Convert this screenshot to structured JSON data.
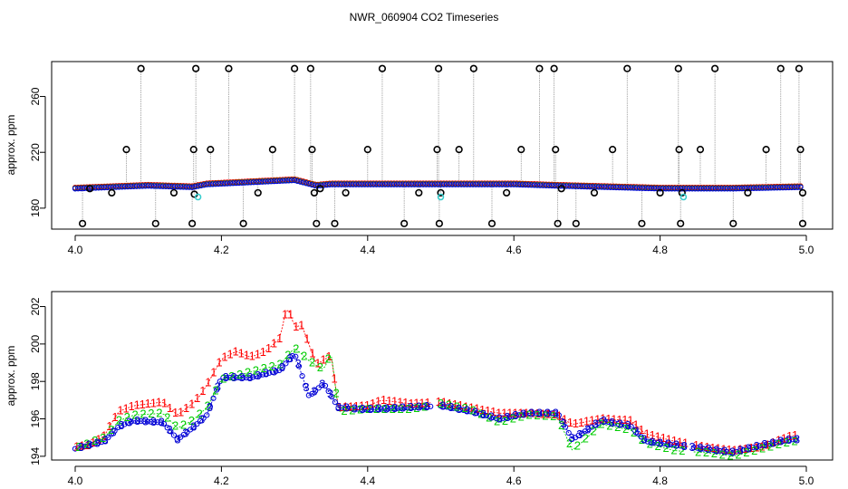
{
  "chart_data": [
    {
      "type": "scatter",
      "title": "NWR_060904  CO2 Timeseries",
      "xlabel": "",
      "ylabel": "approx. ppm",
      "xlim": [
        4.0,
        5.0
      ],
      "ylim": [
        165,
        285
      ],
      "x_ticks": [
        4.0,
        4.2,
        4.4,
        4.6,
        4.8,
        5.0
      ],
      "x_tick_labels": [
        "4.0",
        "4.2",
        "4.4",
        "4.6",
        "4.8",
        "5.0"
      ],
      "y_ticks": [
        180,
        220,
        260
      ],
      "y_tick_labels": [
        "180",
        "220",
        "260"
      ],
      "baseline": [
        [
          4.0,
          194
        ],
        [
          4.1,
          196
        ],
        [
          4.16,
          195
        ],
        [
          4.18,
          197
        ],
        [
          4.3,
          200
        ],
        [
          4.33,
          196
        ],
        [
          4.35,
          197
        ],
        [
          4.6,
          197
        ],
        [
          4.66,
          196
        ],
        [
          4.8,
          194
        ],
        [
          4.9,
          194
        ],
        [
          4.99,
          195
        ]
      ],
      "open_circle_outliers": [
        [
          4.01,
          169
        ],
        [
          4.02,
          194
        ],
        [
          4.05,
          191
        ],
        [
          4.07,
          222
        ],
        [
          4.09,
          280
        ],
        [
          4.11,
          169
        ],
        [
          4.135,
          191
        ],
        [
          4.16,
          169
        ],
        [
          4.162,
          222
        ],
        [
          4.163,
          190
        ],
        [
          4.165,
          280
        ],
        [
          4.185,
          222
        ],
        [
          4.21,
          280
        ],
        [
          4.23,
          169
        ],
        [
          4.25,
          191
        ],
        [
          4.27,
          222
        ],
        [
          4.3,
          280
        ],
        [
          4.322,
          280
        ],
        [
          4.324,
          222
        ],
        [
          4.327,
          191
        ],
        [
          4.33,
          169
        ],
        [
          4.335,
          194
        ],
        [
          4.355,
          169
        ],
        [
          4.37,
          191
        ],
        [
          4.4,
          222
        ],
        [
          4.42,
          280
        ],
        [
          4.45,
          169
        ],
        [
          4.47,
          191
        ],
        [
          4.495,
          222
        ],
        [
          4.497,
          280
        ],
        [
          4.498,
          169
        ],
        [
          4.5,
          191
        ],
        [
          4.525,
          222
        ],
        [
          4.545,
          280
        ],
        [
          4.57,
          169
        ],
        [
          4.59,
          191
        ],
        [
          4.61,
          222
        ],
        [
          4.635,
          280
        ],
        [
          4.655,
          280
        ],
        [
          4.657,
          222
        ],
        [
          4.66,
          169
        ],
        [
          4.665,
          194
        ],
        [
          4.685,
          169
        ],
        [
          4.71,
          191
        ],
        [
          4.735,
          222
        ],
        [
          4.755,
          280
        ],
        [
          4.775,
          169
        ],
        [
          4.8,
          191
        ],
        [
          4.825,
          280
        ],
        [
          4.826,
          222
        ],
        [
          4.828,
          169
        ],
        [
          4.83,
          191
        ],
        [
          4.855,
          222
        ],
        [
          4.875,
          280
        ],
        [
          4.9,
          169
        ],
        [
          4.92,
          191
        ],
        [
          4.945,
          222
        ],
        [
          4.965,
          280
        ],
        [
          4.99,
          280
        ],
        [
          4.992,
          222
        ],
        [
          4.995,
          169
        ],
        [
          4.995,
          191
        ]
      ],
      "cyan_points": [
        [
          4.168,
          188
        ],
        [
          4.5,
          188
        ],
        [
          4.832,
          188
        ]
      ]
    },
    {
      "type": "scatter",
      "title": "",
      "xlabel": "",
      "ylabel": "approx. ppm",
      "xlim": [
        4.0,
        5.0
      ],
      "ylim": [
        193.8,
        202.8
      ],
      "x_ticks": [
        4.0,
        4.2,
        4.4,
        4.6,
        4.8,
        5.0
      ],
      "x_tick_labels": [
        "4.0",
        "4.2",
        "4.4",
        "4.6",
        "4.8",
        "5.0"
      ],
      "y_ticks": [
        194,
        196,
        198,
        200,
        202
      ],
      "y_tick_labels": [
        "194",
        "196",
        "198",
        "200",
        "202"
      ],
      "series": [
        {
          "name": "1",
          "color": "#ff0000",
          "points": [
            [
              4.0,
              194.5
            ],
            [
              4.02,
              194.6
            ],
            [
              4.04,
              195.1
            ],
            [
              4.05,
              195.8
            ],
            [
              4.06,
              196.4
            ],
            [
              4.08,
              196.7
            ],
            [
              4.1,
              196.8
            ],
            [
              4.12,
              196.9
            ],
            [
              4.14,
              196.2
            ],
            [
              4.16,
              196.8
            ],
            [
              4.17,
              197.2
            ],
            [
              4.18,
              197.8
            ],
            [
              4.2,
              199.2
            ],
            [
              4.22,
              199.6
            ],
            [
              4.24,
              199.3
            ],
            [
              4.26,
              199.6
            ],
            [
              4.28,
              200.3
            ],
            [
              4.29,
              202.1
            ],
            [
              4.3,
              200.9
            ],
            [
              4.31,
              201.0
            ],
            [
              4.33,
              198.9
            ],
            [
              4.35,
              199.4
            ],
            [
              4.36,
              196.6
            ],
            [
              4.4,
              196.7
            ],
            [
              4.42,
              197.0
            ],
            [
              4.46,
              196.8
            ],
            [
              4.5,
              196.9
            ],
            [
              4.54,
              196.6
            ],
            [
              4.58,
              196.3
            ],
            [
              4.62,
              196.3
            ],
            [
              4.66,
              196.2
            ],
            [
              4.68,
              195.7
            ],
            [
              4.72,
              196.0
            ],
            [
              4.76,
              195.9
            ],
            [
              4.78,
              195.2
            ],
            [
              4.82,
              194.8
            ],
            [
              4.86,
              194.5
            ],
            [
              4.9,
              194.3
            ],
            [
              4.94,
              194.5
            ],
            [
              4.98,
              195.1
            ]
          ]
        },
        {
          "name": "2",
          "color": "#00cc00",
          "points": [
            [
              4.0,
              194.4
            ],
            [
              4.04,
              195.0
            ],
            [
              4.06,
              195.9
            ],
            [
              4.08,
              196.2
            ],
            [
              4.12,
              196.3
            ],
            [
              4.14,
              195.5
            ],
            [
              4.16,
              195.9
            ],
            [
              4.18,
              196.6
            ],
            [
              4.2,
              198.1
            ],
            [
              4.24,
              198.5
            ],
            [
              4.28,
              198.9
            ],
            [
              4.3,
              199.8
            ],
            [
              4.32,
              199.1
            ],
            [
              4.34,
              198.6
            ],
            [
              4.35,
              199.6
            ],
            [
              4.36,
              196.4
            ],
            [
              4.4,
              196.5
            ],
            [
              4.46,
              196.5
            ],
            [
              4.5,
              196.8
            ],
            [
              4.54,
              196.5
            ],
            [
              4.58,
              195.8
            ],
            [
              4.62,
              196.2
            ],
            [
              4.66,
              196.1
            ],
            [
              4.68,
              194.3
            ],
            [
              4.72,
              195.7
            ],
            [
              4.76,
              195.4
            ],
            [
              4.78,
              194.7
            ],
            [
              4.82,
              194.3
            ],
            [
              4.86,
              194.2
            ],
            [
              4.9,
              194.0
            ],
            [
              4.94,
              194.4
            ],
            [
              4.98,
              194.8
            ]
          ]
        },
        {
          "name": "3",
          "color": "#0000cc",
          "points": [
            [
              4.0,
              194.4
            ],
            [
              4.04,
              194.8
            ],
            [
              4.06,
              195.6
            ],
            [
              4.08,
              195.9
            ],
            [
              4.12,
              195.8
            ],
            [
              4.14,
              194.9
            ],
            [
              4.16,
              195.5
            ],
            [
              4.18,
              196.2
            ],
            [
              4.2,
              198.2
            ],
            [
              4.24,
              198.2
            ],
            [
              4.28,
              198.6
            ],
            [
              4.3,
              199.5
            ],
            [
              4.32,
              197.2
            ],
            [
              4.34,
              197.9
            ],
            [
              4.36,
              196.6
            ],
            [
              4.4,
              196.5
            ],
            [
              4.46,
              196.6
            ],
            [
              4.5,
              196.7
            ],
            [
              4.54,
              196.4
            ],
            [
              4.58,
              196.0
            ],
            [
              4.62,
              196.3
            ],
            [
              4.66,
              196.3
            ],
            [
              4.68,
              194.9
            ],
            [
              4.72,
              195.9
            ],
            [
              4.76,
              195.6
            ],
            [
              4.78,
              194.8
            ],
            [
              4.82,
              194.6
            ],
            [
              4.86,
              194.4
            ],
            [
              4.9,
              194.2
            ],
            [
              4.94,
              194.6
            ],
            [
              4.98,
              194.9
            ]
          ]
        }
      ]
    }
  ]
}
